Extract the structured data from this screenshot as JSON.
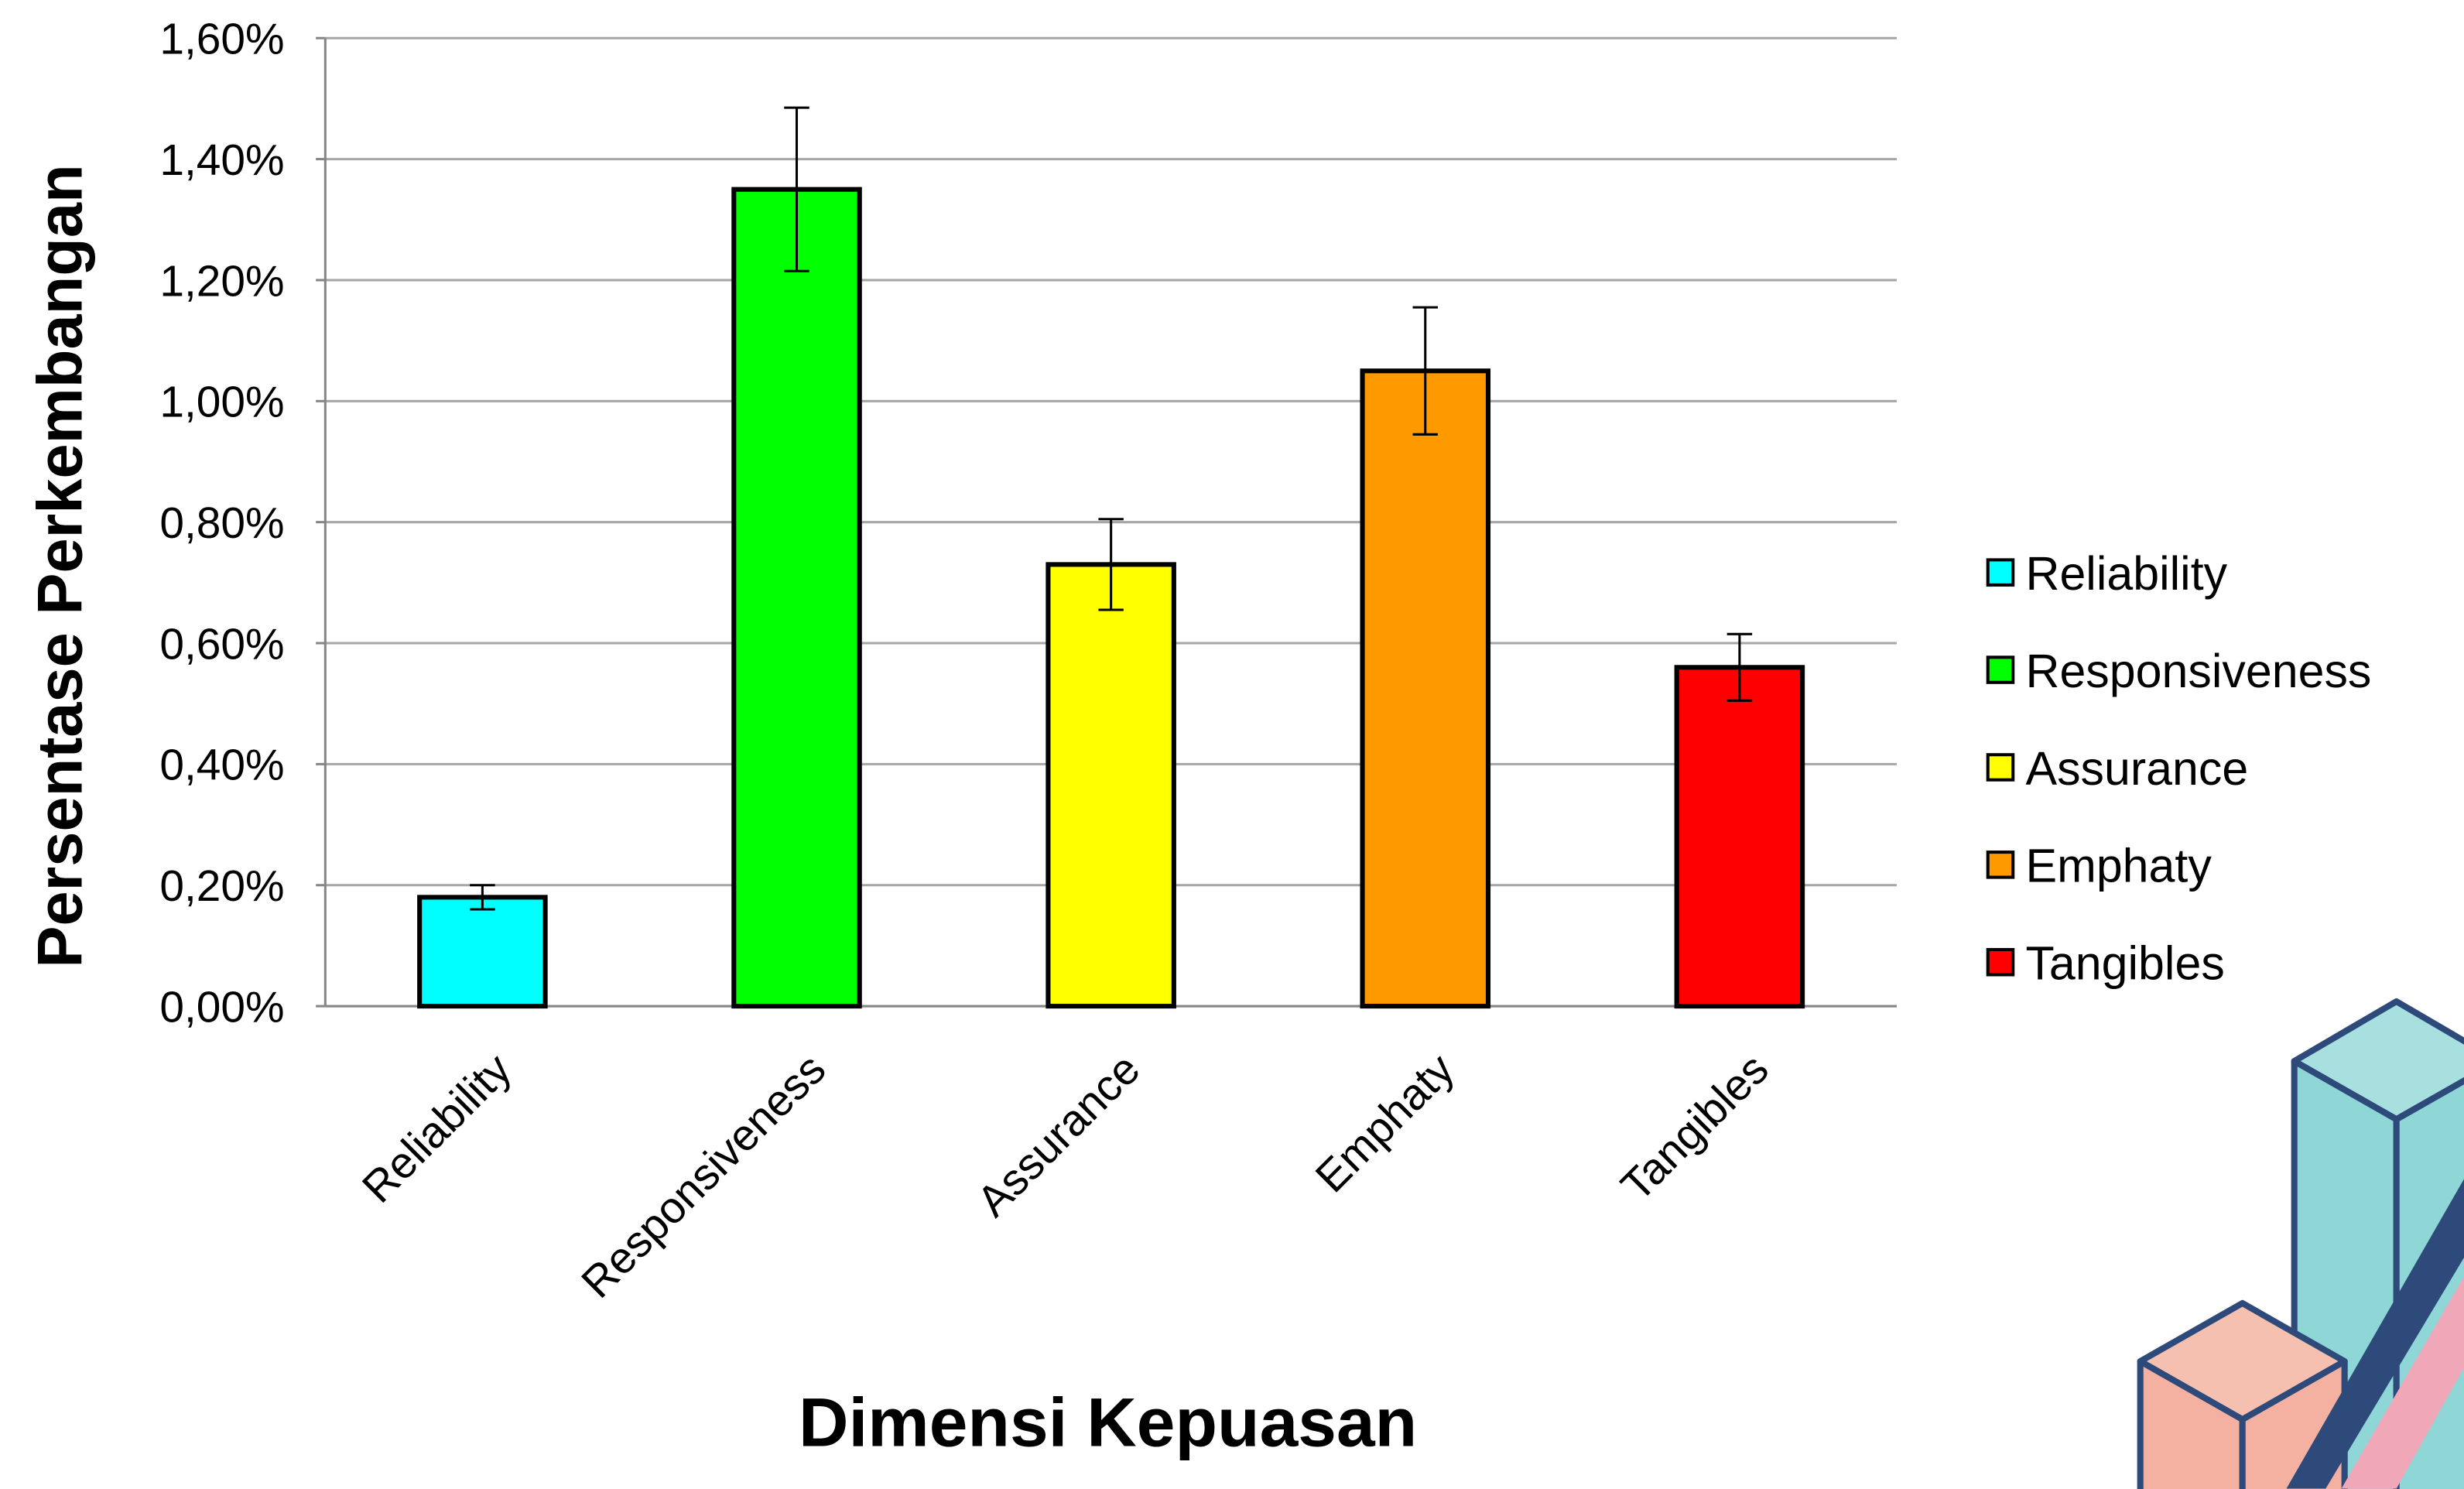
{
  "chart_data": {
    "type": "bar",
    "x_label": "Dimensi Kepuasan",
    "y_label": "Persentase  Perkembangan",
    "categories": [
      "Reliability",
      "Responsiveness",
      "Assurance",
      "Emphaty",
      "Tangibles"
    ],
    "values": [
      0.18,
      1.35,
      0.73,
      1.05,
      0.56
    ],
    "errors": [
      0.02,
      0.135,
      0.075,
      0.105,
      0.055
    ],
    "colors": [
      "#00ffff",
      "#00ff00",
      "#ffff00",
      "#ff9900",
      "#ff0000"
    ],
    "ylim": [
      0,
      1.6
    ],
    "yticks": [
      {
        "value": 0,
        "label": "0,00%"
      },
      {
        "value": 0.2,
        "label": "0,20%"
      },
      {
        "value": 0.4,
        "label": "0,40%"
      },
      {
        "value": 0.6,
        "label": "0,60%"
      },
      {
        "value": 0.8,
        "label": "0,80%"
      },
      {
        "value": 1.0,
        "label": "1,00%"
      },
      {
        "value": 1.2,
        "label": "1,20%"
      },
      {
        "value": 1.4,
        "label": "1,40%"
      },
      {
        "value": 1.6,
        "label": "1,60%"
      }
    ],
    "grid": true,
    "legend": "right"
  }
}
